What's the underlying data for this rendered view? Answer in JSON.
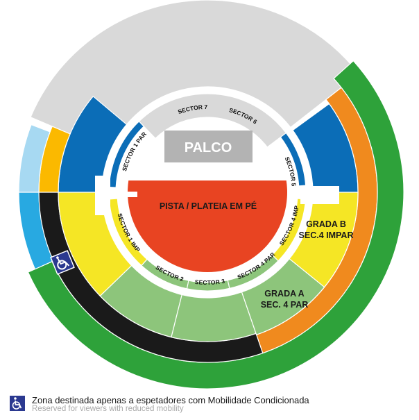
{
  "colors": {
    "gray": "#d9d9d9",
    "blue": "#0b6db7",
    "amber": "#fbb900",
    "light_blue": "#a7d9f2",
    "sky_blue": "#28a9e1",
    "black": "#1a1a1a",
    "green": "#2ea23a",
    "orange": "#f08a1e",
    "yellow": "#f5e625",
    "light_green": "#8dc57b",
    "red": "#e84422",
    "stage": "#b3b3b3",
    "accessibility": "#2b3990"
  },
  "stage": {
    "label": "PALCO"
  },
  "floor": {
    "label": "PISTA / PLATEIA EM PÉ"
  },
  "sectors": {
    "s7": "SECTOR 7",
    "s6": "SECTOR 6",
    "s1par": "SECTOR 1 PAR",
    "s5": "SECTOR 5",
    "s1imp": "SECTOR 1 IMP",
    "s2": "SECTOR 2",
    "s3": "SECTOR 3",
    "s4par": "SECTOR 4 PAR",
    "s4imp": "SECTOR 4 IMP"
  },
  "grada_b": {
    "line1": "GRADA B",
    "line2": "SEC.4 IMPAR"
  },
  "grada_a": {
    "line1": "GRADA A",
    "line2": "SEC. 4 PAR"
  },
  "map_icons": {
    "accessibility": "wheelchair-icon"
  },
  "legend": {
    "icon": "wheelchair-icon",
    "line1": "Zona destinada apenas a espetadores com Mobilidade Condicionada",
    "line2": "Reserved for viewers with reduced mobility"
  }
}
